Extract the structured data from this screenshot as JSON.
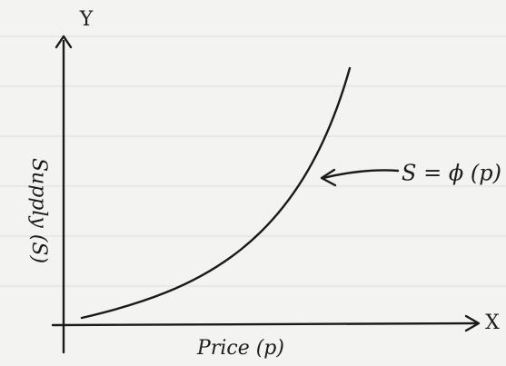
{
  "axes": {
    "y_label": "Y",
    "x_label": "X",
    "y_title": "Supply (S)",
    "x_title": "Price (p)"
  },
  "curve": {
    "label": "S = ϕ (p)"
  }
}
